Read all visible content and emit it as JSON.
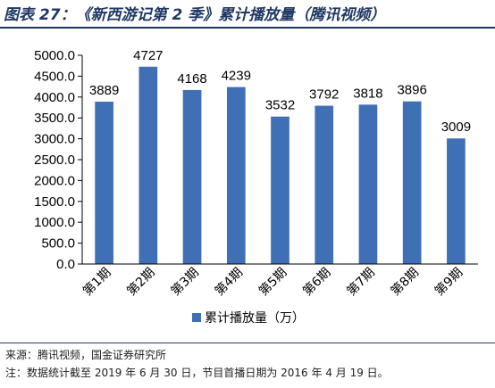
{
  "header": {
    "figure_title": "图表 27：《新西游记第 2 季》累计播放量（腾讯视频）"
  },
  "footer": {
    "source": "来源：腾讯视频，国金证券研究所",
    "note": "注：数据统计截至 2019 年 6 月 30 日，节目首播日期为 2016 年 4 月 19 日。"
  },
  "colors": {
    "bar": "#3f6fb4",
    "title": "#1f3864"
  },
  "chart_data": {
    "type": "bar",
    "categories": [
      "第1期",
      "第2期",
      "第3期",
      "第4期",
      "第5期",
      "第6期",
      "第7期",
      "第8期",
      "第9期"
    ],
    "series": [
      {
        "name": "累计播放量（万）",
        "values": [
          3889,
          4727,
          4168,
          4239,
          3532,
          3792,
          3818,
          3896,
          3009
        ]
      }
    ],
    "ylim": [
      0,
      5000
    ],
    "yticks": [
      "0.0",
      "500.0",
      "1000.0",
      "1500.0",
      "2000.0",
      "2500.0",
      "3000.0",
      "3500.0",
      "4000.0",
      "4500.0",
      "5000.0"
    ],
    "data_labels": [
      "3889",
      "4727",
      "4168",
      "4239",
      "3532",
      "3792",
      "3818",
      "3896",
      "3009"
    ],
    "grid": false,
    "legend_position": "bottom"
  }
}
